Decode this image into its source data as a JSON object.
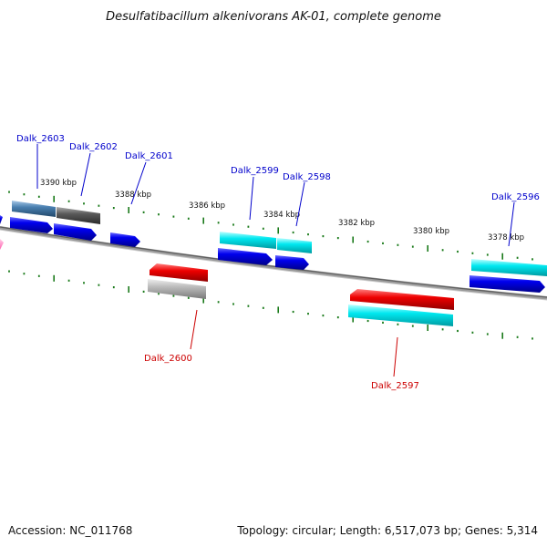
{
  "title": "Desulfatibacillum alkenivorans AK-01, complete genome",
  "footer": {
    "accession": "Accession: NC_011768",
    "summary": "Topology: circular; Length: 6,517,073 bp; Genes: 5,314"
  },
  "colors": {
    "backbone": "#808080",
    "tick": "#1a7a1a",
    "forward_label": "#0000cc",
    "reverse_label": "#cc0000",
    "gene_blue": "#0000ee",
    "gene_cyan": "#00e5ee",
    "gene_red": "#ee0000",
    "gene_gray": "#b0b0b0",
    "gene_steel": "#4a80b0",
    "gene_dark": "#555555",
    "gene_pink": "#ff80c0"
  },
  "scale_labels": [
    "3390 kbp",
    "3388 kbp",
    "3386 kbp",
    "3384 kbp",
    "3382 kbp",
    "3380 kbp",
    "3378 kbp"
  ],
  "genes": [
    {
      "label": "Dalk_2603",
      "strand": "forward"
    },
    {
      "label": "Dalk_2602",
      "strand": "forward"
    },
    {
      "label": "Dalk_2601",
      "strand": "forward"
    },
    {
      "label": "Dalk_2600",
      "strand": "reverse"
    },
    {
      "label": "Dalk_2599",
      "strand": "forward"
    },
    {
      "label": "Dalk_2598",
      "strand": "forward"
    },
    {
      "label": "Dalk_2597",
      "strand": "reverse"
    },
    {
      "label": "Dalk_2596",
      "strand": "forward"
    }
  ]
}
